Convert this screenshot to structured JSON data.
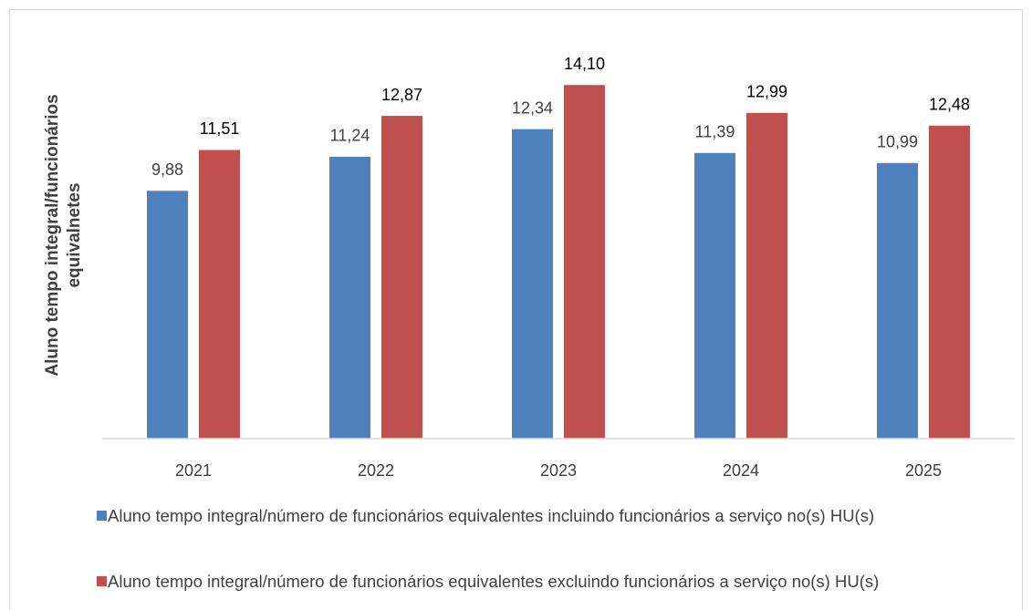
{
  "chart_data": {
    "type": "bar",
    "y_label": [
      "Aluno tempo integral/funcionários",
      "equivalnetes"
    ],
    "categories": [
      "2021",
      "2022",
      "2023",
      "2024",
      "2025"
    ],
    "series": [
      {
        "name": "Aluno tempo integral/número de funcionários equivalentes incluindo funcionários a serviço no(s) HU(s)",
        "color": "#4f81bd",
        "values": [
          9.88,
          11.24,
          12.34,
          11.39,
          10.99
        ],
        "value_labels": [
          "9,88",
          "11,24",
          "12,34",
          "11,39",
          "10,99"
        ]
      },
      {
        "name": "Aluno tempo integral/número de funcionários equivalentes excluindo funcionários a serviço no(s) HU(s)",
        "color": "#c0504d",
        "values": [
          11.51,
          12.87,
          14.1,
          12.99,
          12.48
        ],
        "value_labels": [
          "11,51",
          "12,87",
          "14,10",
          "12,99",
          "12,48"
        ]
      }
    ],
    "ylim": [
      0,
      16
    ]
  }
}
